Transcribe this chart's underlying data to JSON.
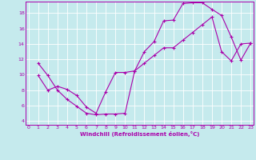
{
  "xlabel": "Windchill (Refroidissement éolien,°C)",
  "background_color": "#c5eaed",
  "line_color": "#aa00aa",
  "grid_color": "#ffffff",
  "xlim": [
    -0.3,
    23.3
  ],
  "ylim": [
    3.5,
    19.5
  ],
  "xticks": [
    0,
    1,
    2,
    3,
    4,
    5,
    6,
    7,
    8,
    9,
    10,
    11,
    12,
    13,
    14,
    15,
    16,
    17,
    18,
    19,
    20,
    21,
    22,
    23
  ],
  "yticks": [
    4,
    6,
    8,
    10,
    12,
    14,
    16,
    18
  ],
  "curve1_x": [
    1,
    2,
    3,
    4,
    5,
    6,
    7,
    8,
    9,
    10,
    11,
    12,
    13,
    14,
    15,
    16,
    17,
    18,
    19,
    20,
    21,
    22,
    23
  ],
  "curve1_y": [
    11.5,
    9.9,
    8.0,
    6.8,
    5.9,
    5.0,
    4.8,
    4.9,
    4.9,
    5.0,
    10.5,
    13.0,
    14.3,
    17.0,
    17.1,
    19.25,
    19.35,
    19.35,
    18.5,
    17.7,
    14.9,
    11.9,
    14.1
  ],
  "curve2_x": [
    1,
    2,
    3,
    4,
    5,
    6,
    7,
    8,
    9,
    10,
    11,
    12,
    13,
    14,
    15,
    16,
    17,
    18,
    19,
    20,
    21,
    22,
    23
  ],
  "curve2_y": [
    9.9,
    8.0,
    8.5,
    8.1,
    7.3,
    5.8,
    5.0,
    7.8,
    10.3,
    10.3,
    10.5,
    11.5,
    12.5,
    13.5,
    13.5,
    14.5,
    15.5,
    16.5,
    17.5,
    13.0,
    11.8,
    14.0,
    14.1
  ]
}
